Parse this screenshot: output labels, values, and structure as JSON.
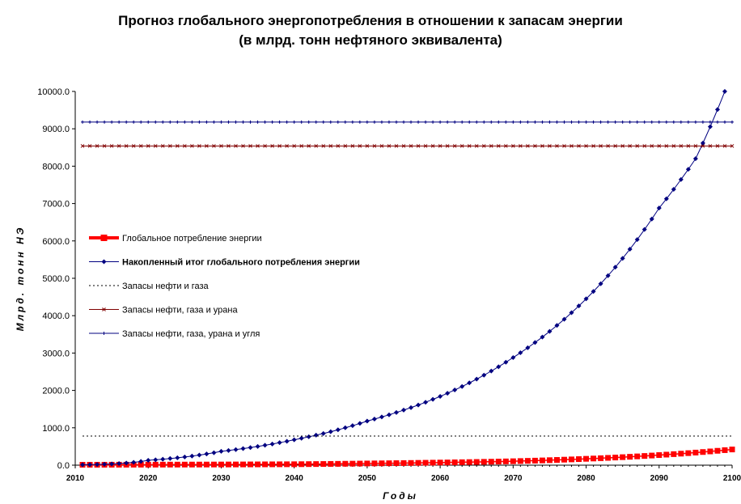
{
  "chart_data": {
    "type": "line",
    "title": [
      "Прогноз глобального энергопотребления в отношении к запасам энергии",
      "(в млрд. тонн нефтяного эквивалента)"
    ],
    "xlabel": "Годы",
    "ylabel": "Млрд. тонн НЭ",
    "xlim": [
      2010,
      2100
    ],
    "ylim": [
      0,
      10000
    ],
    "xticks": [
      "2010",
      "2020",
      "2030",
      "2040",
      "2050",
      "2060",
      "2070",
      "2080",
      "2090",
      "2100"
    ],
    "yticks": [
      "0.0",
      "1000.0",
      "2000.0",
      "3000.0",
      "4000.0",
      "5000.0",
      "6000.0",
      "7000.0",
      "8000.0",
      "9000.0",
      "10000.0"
    ],
    "grid": false,
    "legend_position": "left",
    "series": [
      {
        "name": "Глобальное потребление энергии",
        "color": "#ff0000",
        "marker": "square",
        "points": [
          [
            2011,
            11
          ],
          [
            2020,
            14
          ],
          [
            2030,
            18
          ],
          [
            2040,
            25
          ],
          [
            2050,
            45
          ],
          [
            2060,
            70
          ],
          [
            2070,
            105
          ],
          [
            2080,
            170
          ],
          [
            2090,
            270
          ],
          [
            2100,
            420
          ]
        ]
      },
      {
        "name": "Накопленный итог глобального потребления энергии",
        "color": "#000080",
        "marker": "diamond",
        "points": [
          [
            2011,
            11
          ],
          [
            2020,
            130
          ],
          [
            2030,
            370
          ],
          [
            2040,
            680
          ],
          [
            2050,
            1180
          ],
          [
            2060,
            1840
          ],
          [
            2070,
            2880
          ],
          [
            2080,
            4450
          ],
          [
            2090,
            6880
          ],
          [
            2095,
            8200
          ],
          [
            2099,
            10000
          ]
        ]
      },
      {
        "name": "Запасы нефти и газа",
        "color": "#000000",
        "style": "dotted",
        "points": [
          [
            2011,
            780
          ],
          [
            2100,
            780
          ]
        ]
      },
      {
        "name": "Запасы нефти, газа и урана",
        "color": "#800000",
        "marker": "cross",
        "points": [
          [
            2011,
            8540
          ],
          [
            2100,
            8540
          ]
        ]
      },
      {
        "name": "Запасы нефти, газа, урана и угля",
        "color": "#000080",
        "marker": "plus",
        "points": [
          [
            2011,
            9180
          ],
          [
            2100,
            9180
          ]
        ]
      }
    ]
  }
}
